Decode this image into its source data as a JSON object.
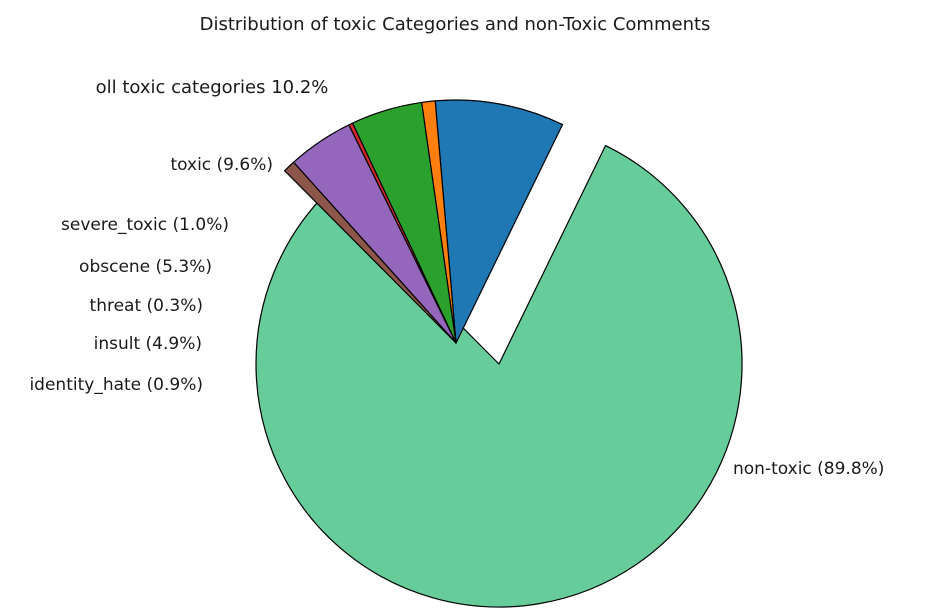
{
  "chart_data": {
    "type": "pie",
    "title": "Distribution of toxic Categories and non-Toxic Comments",
    "group_label": "oll toxic categories 10.2%",
    "slices": [
      {
        "name": "non-toxic",
        "value": 89.8,
        "label": "non-toxic (89.8%)",
        "color": "#66cc99",
        "group": "non-toxic"
      },
      {
        "name": "toxic",
        "value": 9.6,
        "label": "toxic (9.6%)",
        "color": "#1f77b4",
        "group": "toxic"
      },
      {
        "name": "severe_toxic",
        "value": 1.0,
        "label": "severe_toxic (1.0%)",
        "color": "#ff7f0e",
        "group": "toxic"
      },
      {
        "name": "obscene",
        "value": 5.3,
        "label": "obscene (5.3%)",
        "color": "#2ca02c",
        "group": "toxic"
      },
      {
        "name": "threat",
        "value": 0.3,
        "label": "threat (0.3%)",
        "color": "#d62728",
        "group": "toxic"
      },
      {
        "name": "insult",
        "value": 4.9,
        "label": "insult (4.9%)",
        "color": "#9467bd",
        "group": "toxic"
      },
      {
        "name": "identity_hate",
        "value": 0.9,
        "label": "identity_hate (0.9%)",
        "color": "#8c564b",
        "group": "toxic"
      }
    ]
  }
}
